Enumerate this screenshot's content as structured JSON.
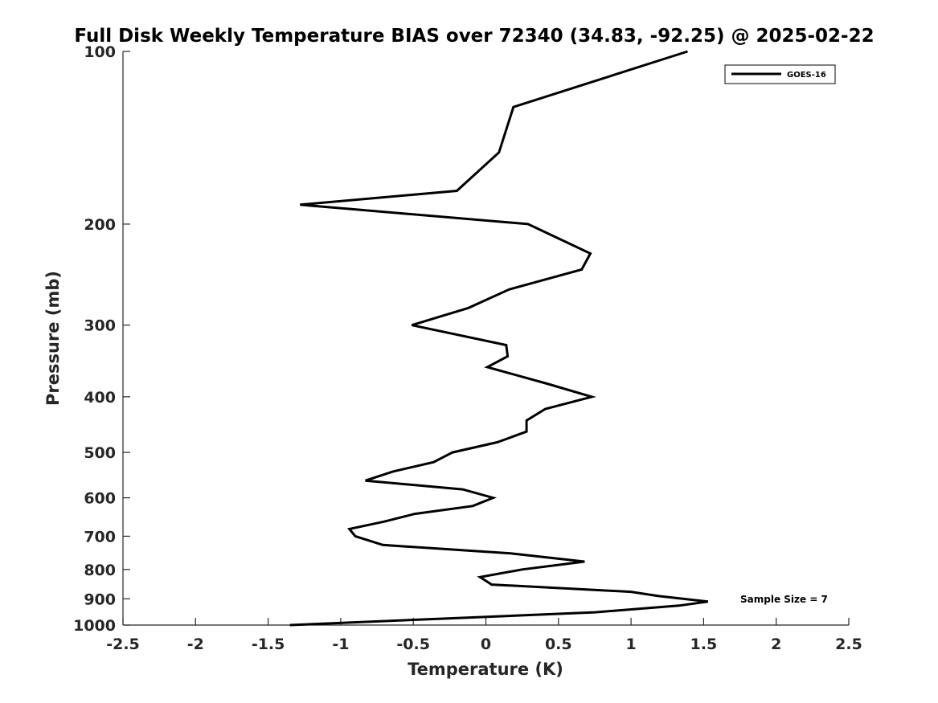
{
  "chart_data": {
    "type": "line",
    "title": "Full Disk Weekly Temperature BIAS over 72340 (34.83, -92.25) @ 2025-02-22",
    "xlabel": "Temperature (K)",
    "ylabel": "Pressure (mb)",
    "xlim": [
      -2.5,
      2.5
    ],
    "ylim": [
      100,
      1000
    ],
    "yscale": "log",
    "yreversed": true,
    "grid": false,
    "legend_position": "top-right",
    "x_ticks": [
      -2.5,
      -2,
      -1.5,
      -1,
      -0.5,
      0,
      0.5,
      1,
      1.5,
      2,
      2.5
    ],
    "x_tick_labels": [
      "-2.5",
      "-2",
      "-1.5",
      "-1",
      "-0.5",
      "0",
      "0.5",
      "1",
      "1.5",
      "2",
      "2.5"
    ],
    "y_ticks": [
      100,
      200,
      300,
      400,
      500,
      600,
      700,
      800,
      900,
      1000
    ],
    "y_tick_labels": [
      "100",
      "200",
      "300",
      "400",
      "500",
      "600",
      "700",
      "800",
      "900",
      "1000"
    ],
    "annotation": "Sample Size = 7",
    "color": "#000000",
    "series": [
      {
        "name": "GOES-16",
        "points": [
          [
            1.39,
            100
          ],
          [
            0.19,
            125
          ],
          [
            0.09,
            150
          ],
          [
            -0.2,
            175
          ],
          [
            -1.28,
            185
          ],
          [
            0.29,
            200
          ],
          [
            0.72,
            225
          ],
          [
            0.66,
            240
          ],
          [
            0.16,
            260
          ],
          [
            -0.12,
            280
          ],
          [
            -0.51,
            300
          ],
          [
            0.14,
            325
          ],
          [
            0.15,
            340
          ],
          [
            0.01,
            355
          ],
          [
            0.43,
            380
          ],
          [
            0.73,
            400
          ],
          [
            0.41,
            420
          ],
          [
            0.28,
            440
          ],
          [
            0.28,
            460
          ],
          [
            0.08,
            480
          ],
          [
            -0.23,
            500
          ],
          [
            -0.36,
            520
          ],
          [
            -0.64,
            540
          ],
          [
            -0.83,
            560
          ],
          [
            -0.16,
            580
          ],
          [
            0.05,
            600
          ],
          [
            -0.09,
            620
          ],
          [
            -0.49,
            640
          ],
          [
            -0.7,
            660
          ],
          [
            -0.94,
            680
          ],
          [
            -0.9,
            700
          ],
          [
            -0.71,
            725
          ],
          [
            0.17,
            750
          ],
          [
            0.68,
            775
          ],
          [
            0.25,
            800
          ],
          [
            -0.04,
            825
          ],
          [
            0.04,
            850
          ],
          [
            1.0,
            875
          ],
          [
            1.19,
            890
          ],
          [
            1.53,
            910
          ],
          [
            1.33,
            925
          ],
          [
            0.75,
            950
          ],
          [
            -0.31,
            975
          ],
          [
            -1.35,
            1000
          ]
        ]
      }
    ]
  }
}
